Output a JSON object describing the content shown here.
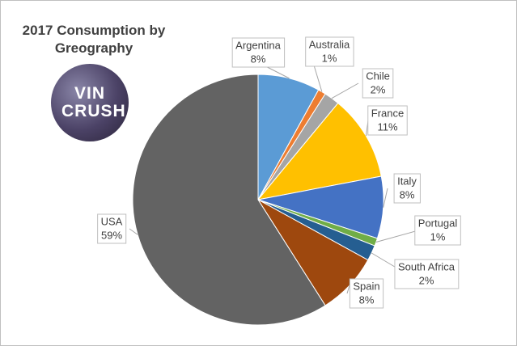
{
  "chart_data": {
    "type": "pie",
    "title": "2017 Consumption by Greography",
    "logo": "VIN CRUSH",
    "categories": [
      "Argentina",
      "Australia",
      "Chile",
      "France",
      "Italy",
      "Portugal",
      "South Africa",
      "Spain",
      "USA"
    ],
    "values": [
      8,
      1,
      2,
      11,
      8,
      1,
      2,
      8,
      59
    ],
    "value_labels": [
      "8%",
      "1%",
      "2%",
      "11%",
      "8%",
      "1%",
      "2%",
      "8%",
      "59%"
    ],
    "colors": [
      "#5b9bd5",
      "#ed7d31",
      "#a5a5a5",
      "#ffc000",
      "#4472c4",
      "#70ad47",
      "#255e91",
      "#9e480e",
      "#636363"
    ]
  }
}
